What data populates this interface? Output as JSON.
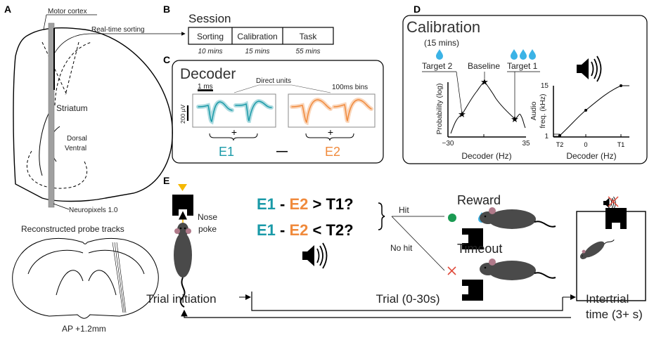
{
  "colors": {
    "e1": "#1a9aa8",
    "e2": "#f08a3c",
    "reward": "#1a9a52",
    "timeout": "#e04a3a",
    "water": "#3bb3e6",
    "probe": "#a0a0a0",
    "cue": "#f5b800"
  },
  "panelA": {
    "label": "A",
    "motor_cortex": "Motor cortex",
    "realtime_sorting": "Real-time sorting",
    "striatum": "Striatum",
    "dorsal": "Dorsal",
    "ventral": "Ventral",
    "probe": "Neuropixels 1.0",
    "reconstructed": "Reconstructed probe tracks",
    "ap": "AP +1.2mm"
  },
  "panelB": {
    "label": "B",
    "title": "Session",
    "phases": [
      {
        "name": "Sorting",
        "duration": "10 mins"
      },
      {
        "name": "Calibration",
        "duration": "15 mins"
      },
      {
        "name": "Task",
        "duration": "55 mins"
      }
    ]
  },
  "panelC": {
    "label": "C",
    "title": "Decoder",
    "direct_units": "Direct units",
    "time_scale": "1 ms",
    "volt_scale": "200 µV",
    "bins": "100ms bins",
    "plus": "+",
    "e1": "E1",
    "minus": "—",
    "e2": "E2"
  },
  "panelD": {
    "label": "D",
    "title": "Calibration",
    "duration": "(15 mins)",
    "target2": "Target 2",
    "baseline": "Baseline",
    "target1": "Target 1",
    "left_plot": {
      "ylabel": "Probability (log)",
      "xlabel": "Decoder (Hz)",
      "xmin": "−30",
      "xmax": "35"
    },
    "right_plot": {
      "ylabel1": "Audio",
      "ylabel2": "freq. (kHz)",
      "xlabel": "Decoder (Hz)",
      "ymax": "15",
      "ymin": "1",
      "xticks": [
        "T2",
        "0",
        "T1"
      ]
    }
  },
  "panelE": {
    "label": "E",
    "nose": "Nose",
    "poke": "poke",
    "eq1": {
      "a": "E1",
      "op": " - ",
      "b": "E2",
      "rest": " > T1?"
    },
    "eq2": {
      "a": "E1",
      "op": " - ",
      "b": "E2",
      "rest": " < T2?"
    },
    "hit": "Hit",
    "no_hit": "No hit",
    "reward": "Reward",
    "timeout": "Timeout",
    "trial_initiation": "Trial initiation",
    "trial": "Trial (0-30s)",
    "intertrial1": "Intertrial",
    "intertrial2": "time (3+ s)"
  }
}
